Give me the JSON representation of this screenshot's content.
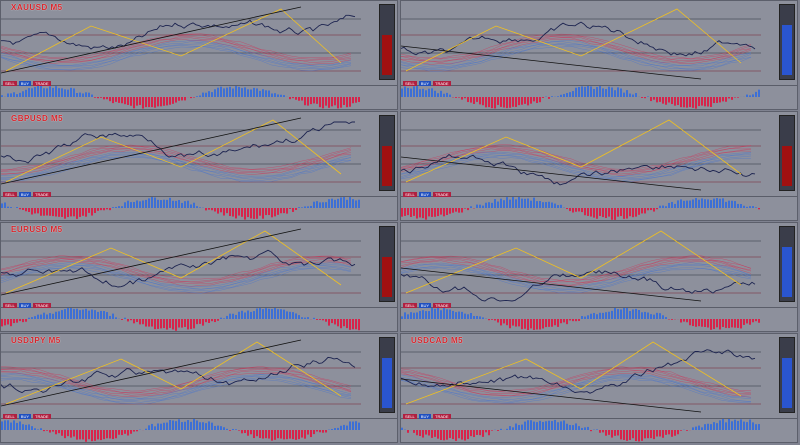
{
  "panels": [
    {
      "symbol": "XAUUSD M5",
      "sidebar": "red",
      "legend": [
        "SELL",
        "BUY",
        "TRADE"
      ]
    },
    {
      "symbol": "",
      "sidebar": "blue",
      "legend": [
        "SELL",
        "BUY",
        "TRADE"
      ]
    },
    {
      "symbol": "GBPUSD M5",
      "sidebar": "red",
      "legend": [
        "SELL",
        "BUY",
        "TRADE"
      ]
    },
    {
      "symbol": "",
      "sidebar": "red",
      "legend": [
        "SELL",
        "BUY",
        "TRADE"
      ]
    },
    {
      "symbol": "EURUSD M5",
      "sidebar": "red",
      "legend": [
        "SELL",
        "BUY",
        "TRADE"
      ]
    },
    {
      "symbol": "",
      "sidebar": "blue",
      "legend": [
        "SELL",
        "BUY",
        "TRADE"
      ]
    },
    {
      "symbol": "USDJPY M5",
      "sidebar": "blue",
      "legend": [
        "SELL",
        "BUY",
        "TRADE"
      ]
    },
    {
      "symbol": "USDCAD M5",
      "sidebar": "blue",
      "legend": [
        "SELL",
        "BUY",
        "TRADE"
      ]
    }
  ],
  "colors": {
    "bear": "#d8234a",
    "bull": "#3c6fd6",
    "trend": "#f0c020",
    "line": "#111111",
    "bg": "#8d909c"
  }
}
